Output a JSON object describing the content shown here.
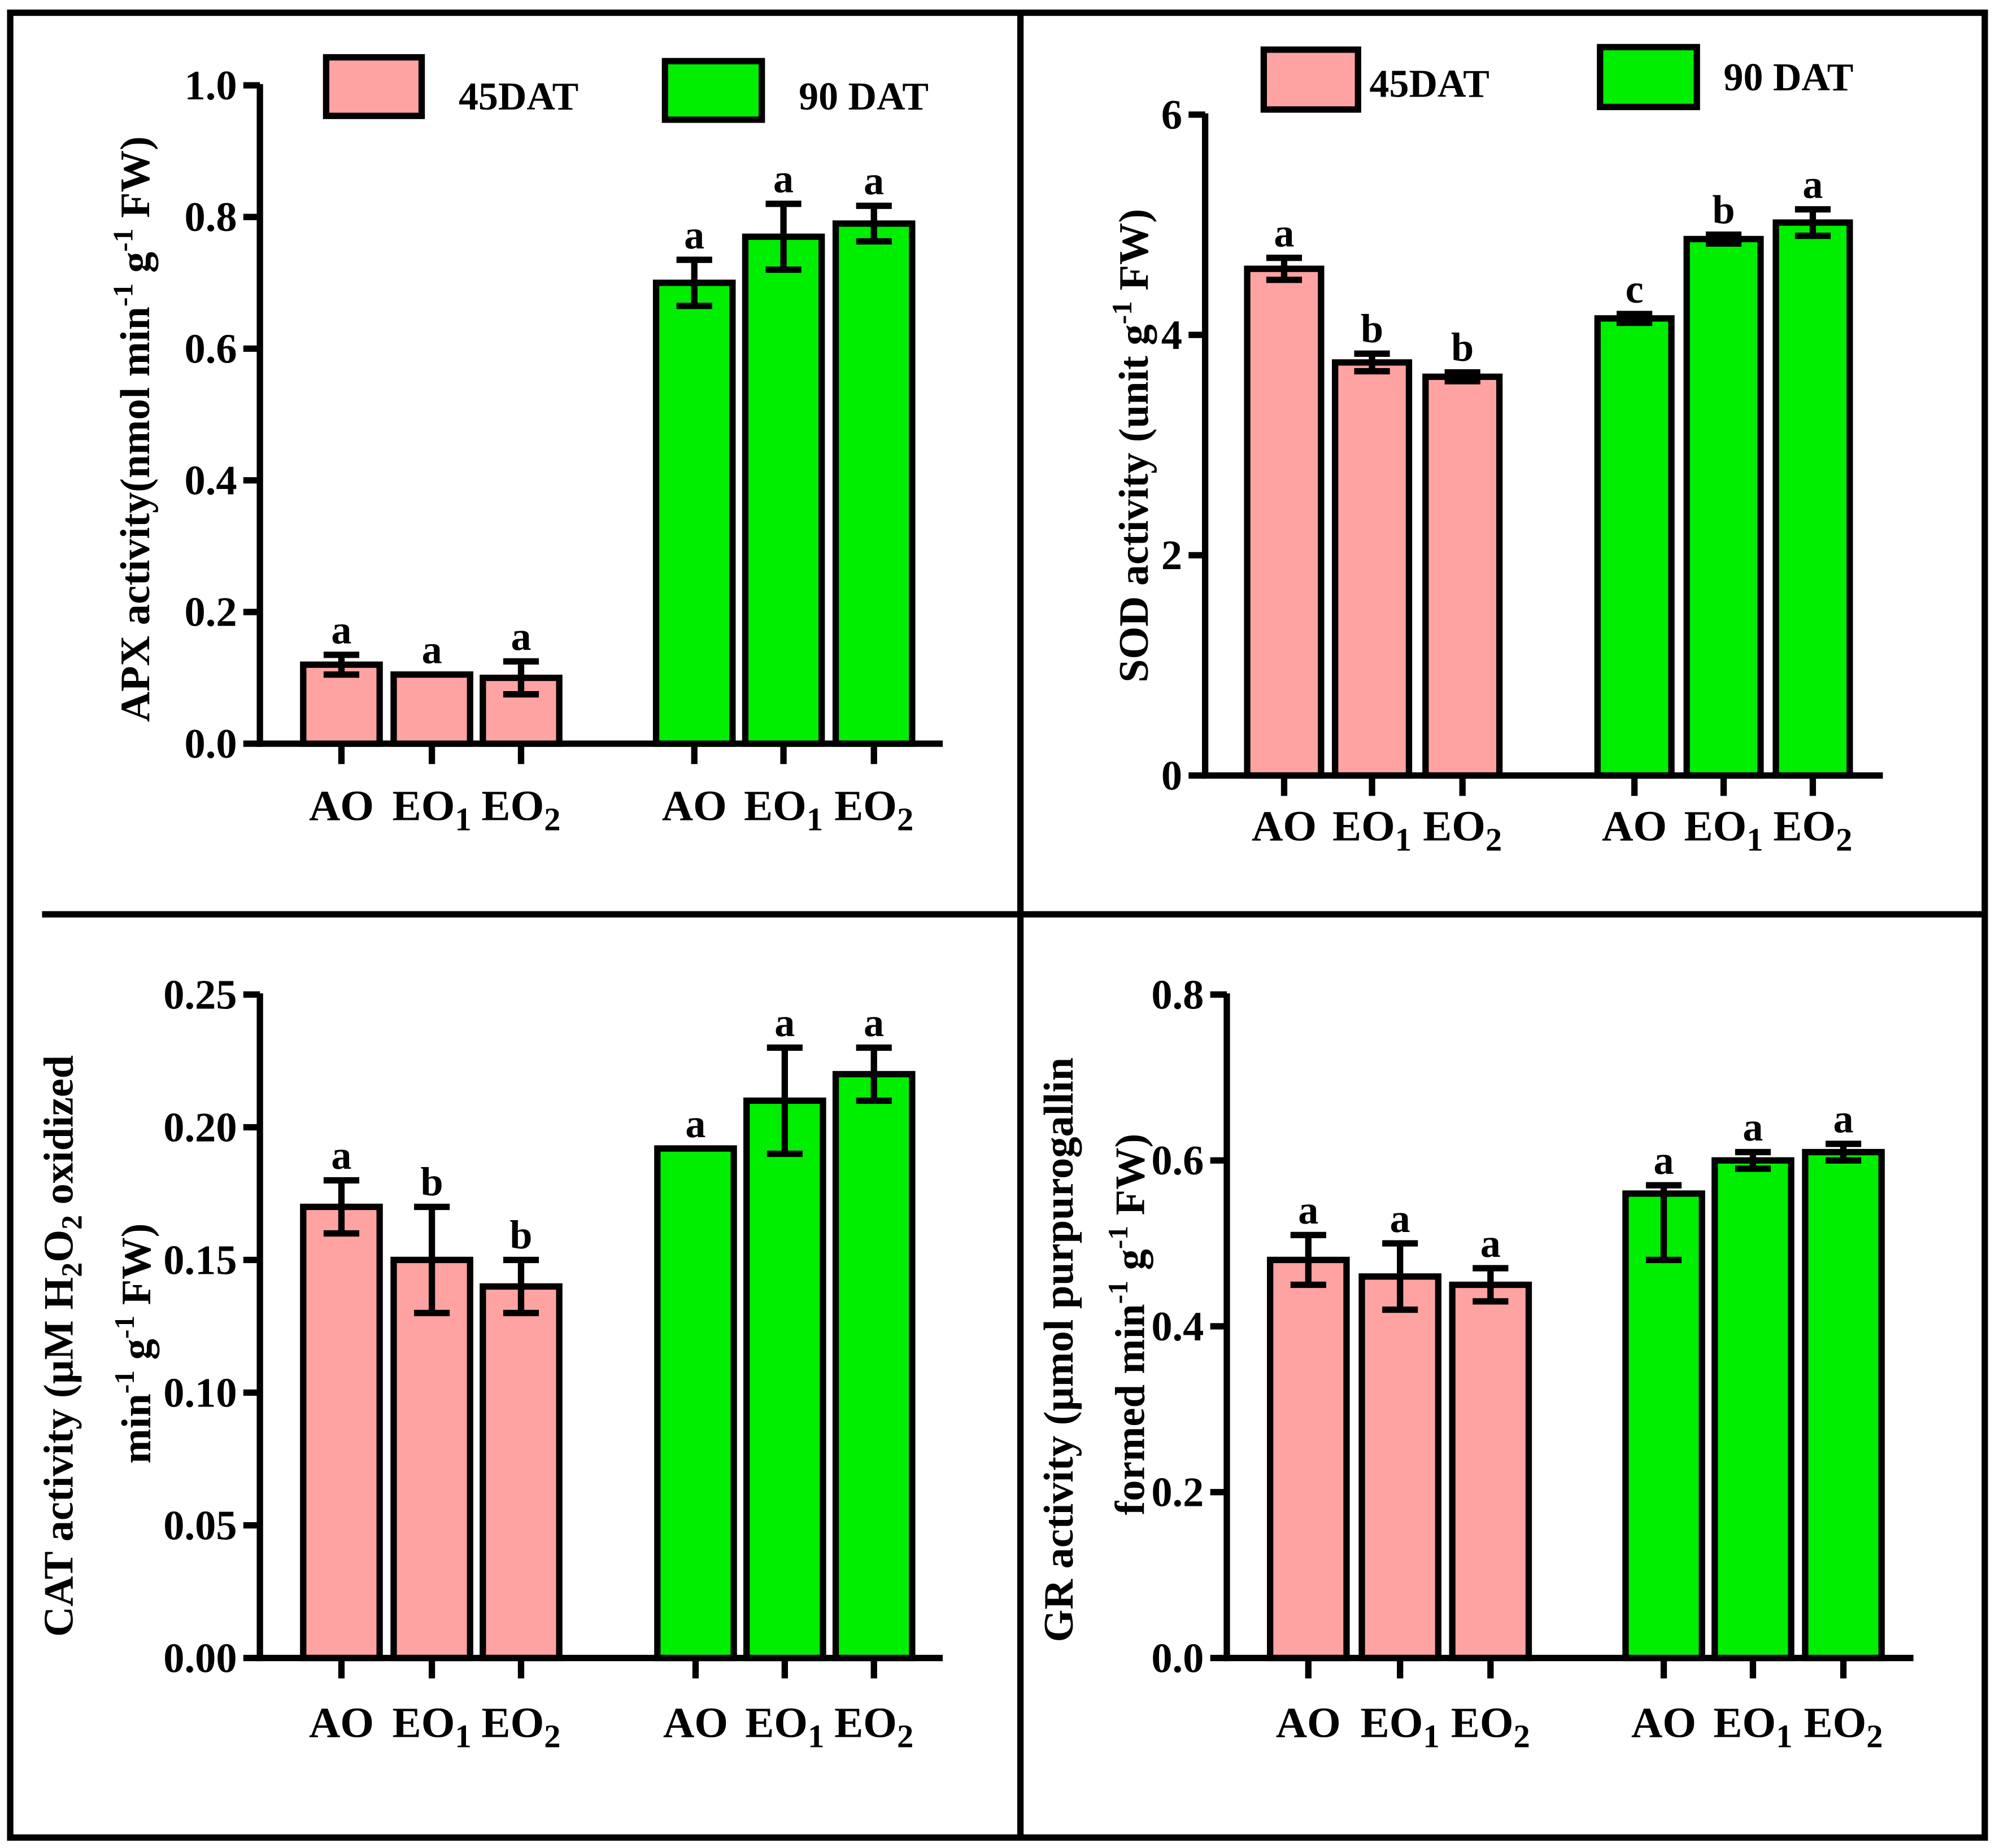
{
  "chart_data": [
    {
      "type": "bar",
      "ylabel": [
        [
          {
            "text": "APX activity(nmol min"
          },
          {
            "sup": "-1"
          },
          {
            "text": " g"
          },
          {
            "sup": "-1"
          },
          {
            "text": " FW)"
          }
        ]
      ],
      "ylim": [
        0,
        1.0
      ],
      "yticks": [
        "0.0",
        "0.2",
        "0.4",
        "0.6",
        "0.8",
        "1.0"
      ],
      "categories": [
        {
          "base": "AO"
        },
        {
          "base": "EO",
          "sub": "1"
        },
        {
          "base": "EO",
          "sub": "2"
        }
      ],
      "series": [
        {
          "name": "45DAT",
          "color": "#FFA2A2",
          "values": [
            0.12,
            0.105,
            0.1
          ],
          "errors": [
            [
              0.015,
              0.015
            ],
            [
              0,
              0
            ],
            [
              0.025,
              0.025
            ]
          ],
          "letters": [
            "a",
            "a",
            "a"
          ]
        },
        {
          "name": "90 DAT",
          "color": "#00EE00",
          "values": [
            0.7,
            0.77,
            0.79
          ],
          "errors": [
            [
              0.035,
              0.035
            ],
            [
              0.05,
              0.05
            ],
            [
              0.027,
              0.027
            ]
          ],
          "letters": [
            "a",
            "a",
            "a"
          ]
        }
      ]
    },
    {
      "type": "bar",
      "ylabel": [
        [
          {
            "text": "SOD activity (unit g"
          },
          {
            "sup": "-1"
          },
          {
            "text": " FW)"
          }
        ]
      ],
      "ylim": [
        0,
        6
      ],
      "yticks": [
        "0",
        "2",
        "4",
        "6"
      ],
      "categories": [
        {
          "base": "AO"
        },
        {
          "base": "EO",
          "sub": "1"
        },
        {
          "base": "EO",
          "sub": "2"
        }
      ],
      "series": [
        {
          "name": "45DAT",
          "color": "#FFA2A2",
          "values": [
            4.6,
            3.75,
            3.62
          ],
          "errors": [
            [
              0.1,
              0.1
            ],
            [
              0.08,
              0.08
            ],
            [
              0.04,
              0.04
            ]
          ],
          "letters": [
            "a",
            "b",
            "b"
          ]
        },
        {
          "name": "90 DAT",
          "color": "#00EE00",
          "values": [
            4.15,
            4.87,
            5.02
          ],
          "errors": [
            [
              0.04,
              0.04
            ],
            [
              0.04,
              0.04
            ],
            [
              0.12,
              0.12
            ]
          ],
          "letters": [
            "c",
            "b",
            "a"
          ]
        }
      ]
    },
    {
      "type": "bar",
      "ylabel": [
        [
          {
            "text": "CAT activity (µM H"
          },
          {
            "sub": "2"
          },
          {
            "text": "O"
          },
          {
            "sub": "2"
          },
          {
            "text": " oxidized"
          }
        ],
        [
          {
            "text": "min"
          },
          {
            "sup": "-1"
          },
          {
            "text": " g"
          },
          {
            "sup": "-1"
          },
          {
            "text": " FW)"
          }
        ]
      ],
      "ylim": [
        0,
        0.25
      ],
      "yticks": [
        "0.00",
        "0.05",
        "0.10",
        "0.15",
        "0.20",
        "0.25"
      ],
      "categories": [
        {
          "base": "AO"
        },
        {
          "base": "EO",
          "sub": "1"
        },
        {
          "base": "EO",
          "sub": "2"
        }
      ],
      "series": [
        {
          "color": "#FFA2A2",
          "values": [
            0.17,
            0.15,
            0.14
          ],
          "errors": [
            [
              0.01,
              0.01
            ],
            [
              0.02,
              0.02
            ],
            [
              0.01,
              0.01
            ]
          ],
          "letters": [
            "a",
            "b",
            "b"
          ]
        },
        {
          "color": "#00EE00",
          "values": [
            0.192,
            0.21,
            0.22
          ],
          "errors": [
            [
              0,
              0
            ],
            [
              0.02,
              0.02
            ],
            [
              0.01,
              0.01
            ]
          ],
          "letters": [
            "a",
            "a",
            "a"
          ]
        }
      ]
    },
    {
      "type": "bar",
      "ylabel": [
        [
          {
            "text": "GR activity (µmol purpurogallin"
          }
        ],
        [
          {
            "text": "formed min"
          },
          {
            "sup": "-1"
          },
          {
            "text": " g"
          },
          {
            "sup": "-1"
          },
          {
            "text": " FW)"
          }
        ]
      ],
      "ylim": [
        0,
        0.8
      ],
      "yticks": [
        "0.0",
        "0.2",
        "0.4",
        "0.6",
        "0.8"
      ],
      "categories": [
        {
          "base": "AO"
        },
        {
          "base": "EO",
          "sub": "1"
        },
        {
          "base": "EO",
          "sub": "2"
        }
      ],
      "series": [
        {
          "color": "#FFA2A2",
          "values": [
            0.48,
            0.46,
            0.45
          ],
          "errors": [
            [
              0.03,
              0.03
            ],
            [
              0.04,
              0.04
            ],
            [
              0.02,
              0.02
            ]
          ],
          "letters": [
            "a",
            "a",
            "a"
          ]
        },
        {
          "color": "#00EE00",
          "values": [
            0.56,
            0.6,
            0.61
          ],
          "errors": [
            [
              0.08,
              0.01
            ],
            [
              0.01,
              0.01
            ],
            [
              0.01,
              0.01
            ]
          ],
          "letters": [
            "a",
            "a",
            "a"
          ]
        }
      ]
    }
  ]
}
